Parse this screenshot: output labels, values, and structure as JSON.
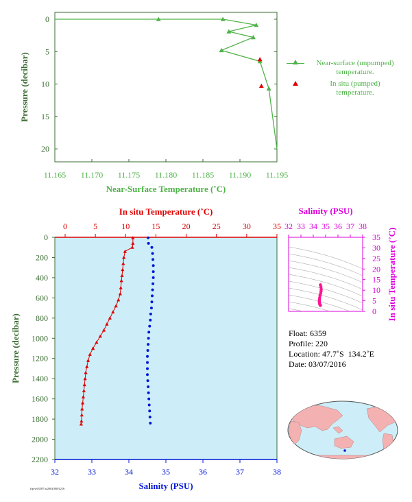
{
  "colors": {
    "green": "#4fb348",
    "dark_green": "#3b6b33",
    "red": "#e00000",
    "blue": "#0018d8",
    "magenta": "#dd00dd",
    "pink": "#ff1493",
    "panel_bg": "#cdeef8",
    "land": "#f3b1b1"
  },
  "chart_data": [
    {
      "type": "line",
      "title": "",
      "xlabel": "Near-Surface Temperature (˚C)",
      "ylabel": "Pressure (decibar)",
      "xlim": [
        11.165,
        11.195
      ],
      "ylim": [
        0,
        22
      ],
      "y_inverted": true,
      "x_ticks": [
        "11.165",
        "11.170",
        "11.175",
        "11.180",
        "11.185",
        "11.190",
        "11.195"
      ],
      "y_ticks": [
        "0",
        "5",
        "10",
        "15",
        "20"
      ],
      "series": [
        {
          "name": "Near-surface (unpumped) temperature.",
          "marker": "triangle",
          "points": [
            [
              11.165,
              0.0
            ],
            [
              11.179,
              0.0
            ],
            [
              11.1877,
              0.0
            ],
            [
              11.1922,
              0.9
            ],
            [
              11.1885,
              1.9
            ],
            [
              11.1918,
              2.8
            ],
            [
              11.1875,
              4.8
            ],
            [
              11.1927,
              6.5
            ],
            [
              11.1939,
              10.7
            ],
            [
              11.195,
              20.0
            ]
          ],
          "marked_points": [
            [
              11.179,
              0.0
            ],
            [
              11.1877,
              0.0
            ],
            [
              11.1922,
              0.9
            ],
            [
              11.1885,
              1.9
            ],
            [
              11.1918,
              2.8
            ],
            [
              11.1875,
              4.8
            ],
            [
              11.1927,
              6.5
            ],
            [
              11.1939,
              10.7
            ]
          ]
        },
        {
          "name": "In situ (pumped) temperature.",
          "marker": "triangle",
          "points": [
            [
              11.1927,
              6.2
            ],
            [
              11.1929,
              10.3
            ]
          ]
        }
      ],
      "legend": {
        "placement": "right",
        "entries": [
          {
            "line1": "Near-surface (unpumped)",
            "line2": "temperature."
          },
          {
            "line1": "In situ (pumped)",
            "line2": "temperature."
          }
        ]
      }
    },
    {
      "type": "scatter",
      "title": "",
      "top_xlabel": "In situ Temperature (˚C)",
      "bottom_xlabel": "Salinity (PSU)",
      "ylabel": "Pressure (decibar)",
      "top_xlim": [
        0,
        35
      ],
      "bottom_xlim": [
        32,
        38
      ],
      "ylim": [
        0,
        2200
      ],
      "y_inverted": true,
      "top_ticks": [
        "0",
        "5",
        "10",
        "15",
        "20",
        "25",
        "30",
        "35"
      ],
      "bottom_ticks": [
        "32",
        "33",
        "34",
        "35",
        "36",
        "37",
        "38"
      ],
      "y_ticks": [
        "0",
        "200",
        "400",
        "600",
        "800",
        "1000",
        "1200",
        "1400",
        "1600",
        "1800",
        "2000",
        "2200"
      ],
      "series": [
        {
          "name": "temperature",
          "marker": "triangle",
          "points": [
            [
              11.2,
              5
            ],
            [
              11.2,
              60
            ],
            [
              11.1,
              100
            ],
            [
              9.9,
              140
            ],
            [
              9.7,
              200
            ],
            [
              9.6,
              260
            ],
            [
              9.5,
              320
            ],
            [
              9.4,
              380
            ],
            [
              9.3,
              430
            ],
            [
              9.2,
              500
            ],
            [
              9.1,
              560
            ],
            [
              8.8,
              620
            ],
            [
              8.4,
              680
            ],
            [
              7.9,
              740
            ],
            [
              7.4,
              800
            ],
            [
              6.9,
              860
            ],
            [
              6.4,
              920
            ],
            [
              5.8,
              980
            ],
            [
              5.2,
              1040
            ],
            [
              4.6,
              1100
            ],
            [
              4.1,
              1160
            ],
            [
              3.8,
              1220
            ],
            [
              3.6,
              1280
            ],
            [
              3.4,
              1340
            ],
            [
              3.3,
              1400
            ],
            [
              3.2,
              1460
            ],
            [
              3.1,
              1520
            ],
            [
              3.0,
              1580
            ],
            [
              2.9,
              1640
            ],
            [
              2.8,
              1700
            ],
            [
              2.75,
              1760
            ],
            [
              2.7,
              1820
            ],
            [
              2.65,
              1850
            ]
          ]
        },
        {
          "name": "salinity",
          "marker": "circle",
          "points": [
            [
              34.52,
              5
            ],
            [
              34.53,
              60
            ],
            [
              34.62,
              100
            ],
            [
              34.64,
              160
            ],
            [
              34.65,
              220
            ],
            [
              34.66,
              280
            ],
            [
              34.66,
              340
            ],
            [
              34.66,
              400
            ],
            [
              34.65,
              460
            ],
            [
              34.64,
              520
            ],
            [
              34.63,
              580
            ],
            [
              34.62,
              640
            ],
            [
              34.61,
              700
            ],
            [
              34.59,
              760
            ],
            [
              34.58,
              820
            ],
            [
              34.56,
              880
            ],
            [
              34.54,
              940
            ],
            [
              34.53,
              1000
            ],
            [
              34.52,
              1060
            ],
            [
              34.51,
              1120
            ],
            [
              34.5,
              1180
            ],
            [
              34.5,
              1240
            ],
            [
              34.5,
              1300
            ],
            [
              34.5,
              1360
            ],
            [
              34.51,
              1420
            ],
            [
              34.52,
              1480
            ],
            [
              34.53,
              1540
            ],
            [
              34.54,
              1600
            ],
            [
              34.55,
              1660
            ],
            [
              34.56,
              1720
            ],
            [
              34.57,
              1780
            ],
            [
              34.58,
              1840
            ]
          ]
        }
      ]
    },
    {
      "type": "scatter",
      "title": "",
      "top_xlabel": "Salinity (PSU)",
      "right_ylabel": "In situ Temperature (˚C)",
      "xlim": [
        32,
        38
      ],
      "ylim": [
        0,
        35
      ],
      "x_ticks": [
        "32",
        "33",
        "34",
        "35",
        "36",
        "37",
        "38"
      ],
      "y_ticks": [
        "0",
        "5",
        "10",
        "15",
        "20",
        "25",
        "30",
        "35"
      ],
      "series": [
        {
          "name": "T-S",
          "points": [
            [
              34.58,
              12.5
            ],
            [
              34.62,
              11.5
            ],
            [
              34.64,
              10.4
            ],
            [
              34.63,
              9.5
            ],
            [
              34.6,
              8.5
            ],
            [
              34.55,
              7.5
            ],
            [
              34.52,
              6.5
            ],
            [
              34.5,
              5.6
            ],
            [
              34.49,
              4.8
            ],
            [
              34.5,
              4.1
            ],
            [
              34.52,
              3.5
            ],
            [
              34.55,
              3.0
            ],
            [
              34.58,
              2.8
            ]
          ]
        }
      ]
    }
  ],
  "info": {
    "float_label": "Float:",
    "float_value": "6359",
    "profile_label": "Profile:",
    "profile_value": "220",
    "location_label": "Location:",
    "location_value": "47.7˚S  134.2˚E",
    "date_label": "Date:",
    "date_value": "03/07/2016"
  },
  "footer_code": "ftp/w63587/w2004/0001216"
}
